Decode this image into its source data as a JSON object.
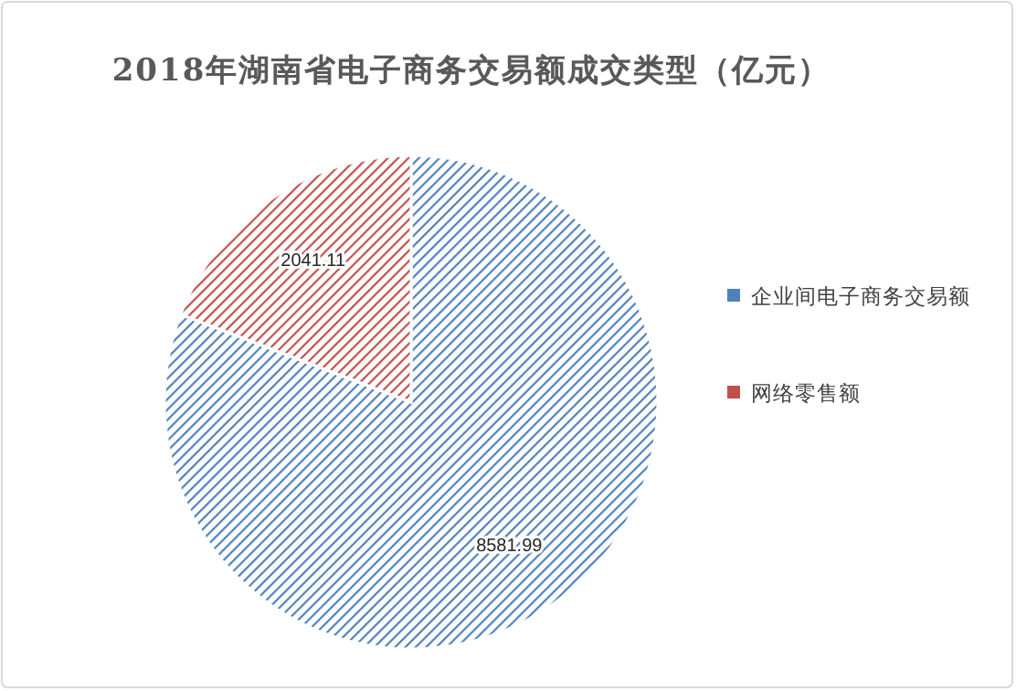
{
  "chart_data": {
    "type": "pie",
    "title": "2018年湖南省电子商务交易额成交类型（亿元）",
    "categories": [
      "企业间电子商务交易额",
      "网络零售额"
    ],
    "values": [
      8581.99,
      2041.11
    ],
    "colors": [
      "#4f81bd",
      "#c0504d"
    ],
    "data_labels": true,
    "legend": "right"
  }
}
